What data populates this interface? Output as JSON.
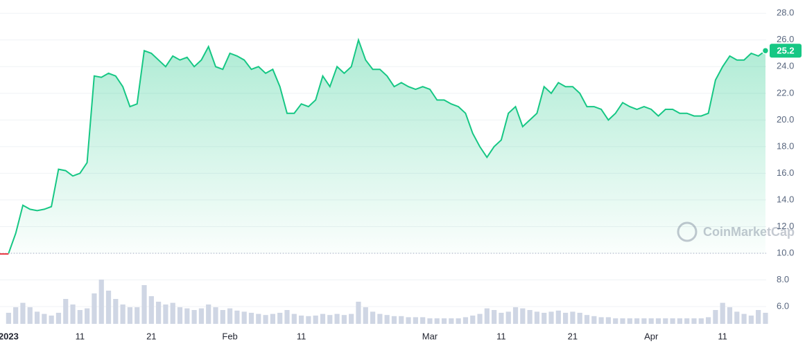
{
  "chart_data": {
    "type": "line",
    "watermark": "CoinMarketCap",
    "color": "#16c784",
    "down_color": "#ea3943",
    "grid": true,
    "baseline": 10,
    "x": [
      0,
      1,
      2,
      3,
      4,
      5,
      6,
      7,
      8,
      9,
      10,
      11,
      12,
      13,
      14,
      15,
      16,
      17,
      18,
      19,
      20,
      21,
      22,
      23,
      24,
      25,
      26,
      27,
      28,
      29,
      30,
      31,
      32,
      33,
      34,
      35,
      36,
      37,
      38,
      39,
      40,
      41,
      42,
      43,
      44,
      45,
      46,
      47,
      48,
      49,
      50,
      51,
      52,
      53,
      54,
      55,
      56,
      57,
      58,
      59,
      60,
      61,
      62,
      63,
      64,
      65,
      66,
      67,
      68,
      69,
      70,
      71,
      72,
      73,
      74,
      75,
      76,
      77,
      78,
      79,
      80,
      81,
      82,
      83,
      84,
      85,
      86,
      87,
      88,
      89,
      90,
      91,
      92,
      93,
      94,
      95,
      96,
      97,
      98,
      99,
      100,
      101,
      102,
      103,
      104,
      105,
      106
    ],
    "values": [
      10.0,
      11.5,
      13.6,
      13.3,
      13.2,
      13.3,
      13.5,
      16.3,
      16.2,
      15.8,
      16.0,
      16.8,
      23.3,
      23.2,
      23.5,
      23.3,
      22.5,
      21.0,
      21.2,
      25.2,
      25.0,
      24.5,
      24.0,
      24.8,
      24.5,
      24.7,
      24.0,
      24.5,
      25.5,
      24.0,
      23.8,
      25.0,
      24.8,
      24.5,
      23.8,
      24.0,
      23.5,
      23.8,
      22.5,
      20.5,
      20.5,
      21.2,
      21.0,
      21.5,
      23.3,
      22.5,
      24.0,
      23.5,
      24.0,
      26.0,
      24.5,
      23.8,
      23.8,
      23.3,
      22.5,
      22.8,
      22.5,
      22.3,
      22.5,
      22.3,
      21.5,
      21.5,
      21.2,
      21.0,
      20.5,
      19.0,
      18.0,
      17.2,
      18.0,
      18.5,
      20.5,
      21.0,
      19.5,
      20.0,
      20.5,
      22.5,
      22.0,
      22.8,
      22.5,
      22.5,
      22.0,
      21.0,
      21.0,
      20.8,
      20.0,
      20.5,
      21.3,
      21.0,
      20.8,
      21.0,
      20.8,
      20.3,
      20.8,
      20.8,
      20.5,
      20.5,
      20.3,
      20.3,
      20.5,
      23.0,
      24.0,
      24.8,
      24.5,
      24.5,
      25.0,
      24.8,
      25.2
    ],
    "volume": [
      20,
      30,
      38,
      30,
      22,
      18,
      15,
      20,
      45,
      35,
      25,
      28,
      55,
      80,
      60,
      45,
      35,
      30,
      30,
      70,
      50,
      40,
      35,
      38,
      30,
      28,
      25,
      28,
      35,
      30,
      25,
      28,
      24,
      22,
      20,
      18,
      16,
      18,
      20,
      25,
      18,
      15,
      14,
      15,
      18,
      16,
      18,
      16,
      18,
      40,
      30,
      22,
      18,
      16,
      14,
      14,
      12,
      12,
      12,
      10,
      10,
      10,
      10,
      10,
      12,
      15,
      18,
      28,
      25,
      20,
      22,
      30,
      28,
      25,
      22,
      20,
      22,
      24,
      20,
      22,
      20,
      16,
      14,
      12,
      12,
      10,
      10,
      10,
      10,
      10,
      10,
      10,
      10,
      10,
      10,
      10,
      10,
      10,
      12,
      25,
      38,
      30,
      22,
      18,
      15,
      25,
      20
    ],
    "volume_lim": [
      0,
      100
    ],
    "xlim": [
      -1.2,
      106.1
    ],
    "ylim": [
      4.6,
      29.0
    ],
    "xticks": [
      {
        "value": 0,
        "label": "2023"
      },
      {
        "value": 10,
        "label": "11"
      },
      {
        "value": 20,
        "label": "21"
      },
      {
        "value": 31,
        "label": "Feb"
      },
      {
        "value": 41,
        "label": "11"
      },
      {
        "value": 59,
        "label": "Mar"
      },
      {
        "value": 69,
        "label": "11"
      },
      {
        "value": 79,
        "label": "21"
      },
      {
        "value": 90,
        "label": "Apr"
      },
      {
        "value": 100,
        "label": "11"
      }
    ],
    "yticks": [
      {
        "value": 6,
        "label": "6.0"
      },
      {
        "value": 8,
        "label": "8.0"
      },
      {
        "value": 10,
        "label": "10.0"
      },
      {
        "value": 12,
        "label": "12.0"
      },
      {
        "value": 14,
        "label": "14.0"
      },
      {
        "value": 16,
        "label": "16.0"
      },
      {
        "value": 18,
        "label": "18.0"
      },
      {
        "value": 20,
        "label": "20.0"
      },
      {
        "value": 22,
        "label": "22.0"
      },
      {
        "value": 24,
        "label": "24.0"
      },
      {
        "value": 26,
        "label": "26.0"
      },
      {
        "value": 28,
        "label": "28.0"
      }
    ]
  }
}
